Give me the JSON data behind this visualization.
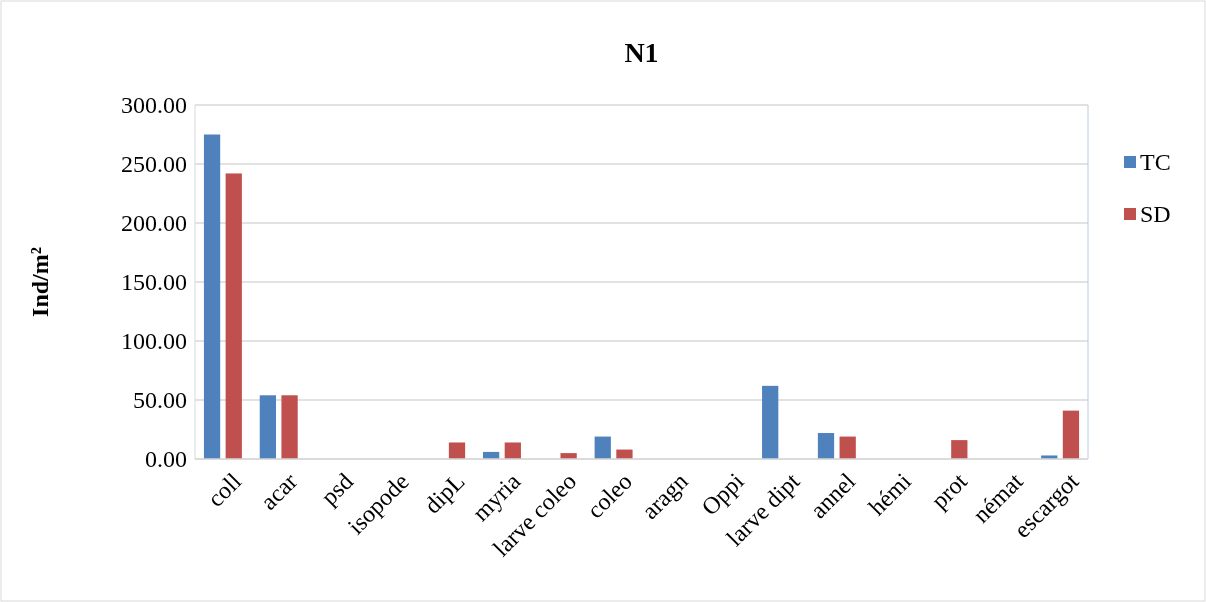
{
  "chart_data": {
    "type": "bar",
    "title": "N1",
    "ylabel": "Ind/m²",
    "categories": [
      "coll",
      "acar",
      "psd",
      "isopode",
      "dipL",
      "myria",
      "larve coleo",
      "coleo",
      "aragn",
      "Oppi",
      "larve dipt",
      "annel",
      "hémi",
      "prot",
      "némat",
      "escargot"
    ],
    "series": [
      {
        "name": "TC",
        "color": "#4f81bd",
        "values": [
          275,
          54,
          0,
          0,
          0,
          6,
          0,
          19,
          0,
          0,
          62,
          22,
          0,
          0,
          0,
          3
        ]
      },
      {
        "name": "SD",
        "color": "#c0504d",
        "values": [
          242,
          54,
          0,
          0,
          14,
          14,
          5,
          8,
          0,
          0,
          0,
          19,
          0,
          16,
          0,
          41
        ]
      }
    ],
    "ylim": [
      0,
      300
    ],
    "yticks": [
      {
        "value": 0,
        "label": "0.00"
      },
      {
        "value": 50,
        "label": "50.00"
      },
      {
        "value": 100,
        "label": "100.00"
      },
      {
        "value": 150,
        "label": "150.00"
      },
      {
        "value": 200,
        "label": "200.00"
      },
      {
        "value": 250,
        "label": "250.00"
      },
      {
        "value": 300,
        "label": "300.00"
      }
    ],
    "grid": "y",
    "legend": "right"
  }
}
